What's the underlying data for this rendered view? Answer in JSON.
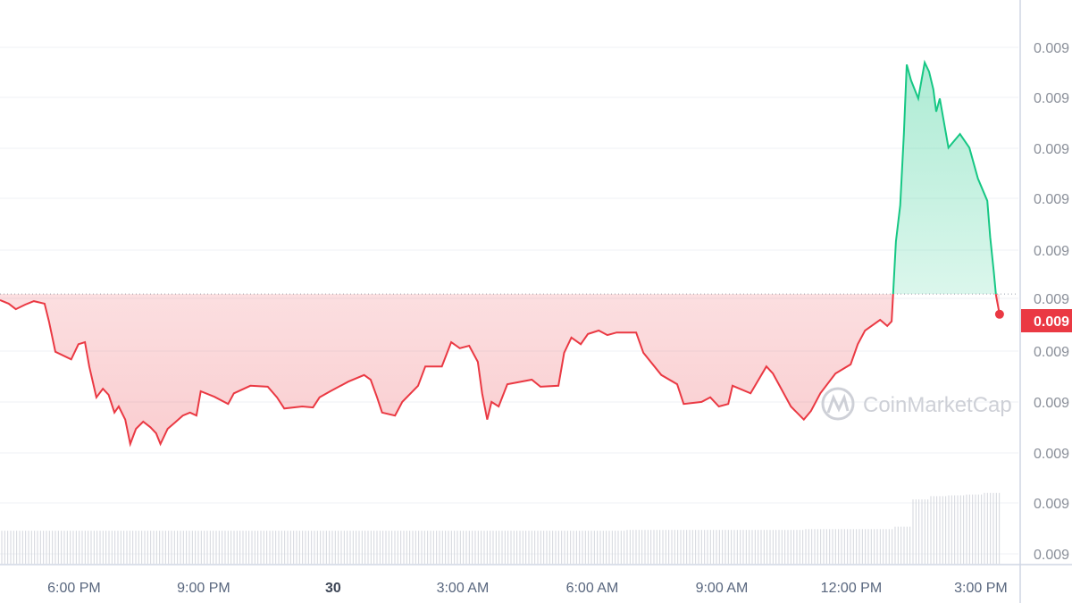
{
  "chart_data": {
    "type": "area",
    "title": "",
    "xlabel": "",
    "ylabel": "",
    "watermark": "CoinMarketCap",
    "x_tick_labels": [
      "6:00 PM",
      "9:00 PM",
      "30",
      "3:00 AM",
      "6:00 AM",
      "9:00 AM",
      "12:00 PM",
      "3:00 PM"
    ],
    "y_tick_labels": [
      "0.009",
      "0.009",
      "0.009",
      "0.009",
      "0.009",
      "0.009",
      "0.009",
      "0.009",
      "0.009",
      "0.009",
      "0.009"
    ],
    "y_scale_note": "relative price level (axis labels truncated)",
    "ylim": [
      0,
      100
    ],
    "grid": true,
    "reference_open": 51.3,
    "current_price_label": "0.009",
    "current_value": 47.3,
    "colors": {
      "up": "#16c784",
      "down": "#ea3943",
      "grid": "#eff2f5",
      "axis": "#cfd6e4",
      "volume": "#d3d6dc"
    },
    "series": [
      {
        "x": [
          "29 16:22",
          "29 16:34",
          "29 16:44",
          "29 16:57",
          "29 17:09",
          "29 17:24",
          "29 17:30",
          "29 17:39",
          "29 18:01",
          "29 18:11",
          "29 18:20",
          "29 18:26",
          "29 18:36",
          "29 18:45",
          "29 18:53",
          "29 19:01",
          "29 19:07",
          "29 19:16",
          "29 19:23",
          "29 19:31",
          "29 19:41",
          "29 19:51",
          "29 19:59",
          "29 20:05",
          "29 20:15",
          "29 20:25",
          "29 20:36",
          "29 20:46",
          "29 20:55",
          "29 21:01",
          "29 21:20",
          "29 21:39",
          "29 21:47",
          "29 22:10",
          "29 22:34",
          "29 22:47",
          "29 22:57",
          "29 23:22",
          "29 23:37",
          "29 23:46",
          "30 00:01",
          "30 00:26",
          "30 00:48",
          "30 00:57",
          "30 01:06",
          "30 01:13",
          "30 01:31",
          "30 01:41",
          "30 02:03",
          "30 02:13",
          "30 02:36",
          "30 02:49",
          "30 03:01",
          "30 03:14",
          "30 03:26",
          "30 03:32",
          "30 03:39",
          "30 03:45",
          "30 03:55",
          "30 04:07",
          "30 04:41",
          "30 04:53",
          "30 05:18",
          "30 05:26",
          "30 05:36",
          "30 05:49",
          "30 05:59",
          "30 06:14",
          "30 06:26",
          "30 06:39",
          "30 07:06",
          "30 07:16",
          "30 07:41",
          "30 08:03",
          "30 08:12",
          "30 08:37",
          "30 08:49",
          "30 09:01",
          "30 09:14",
          "30 09:20",
          "30 09:45",
          "30 10:07",
          "30 10:16",
          "30 10:41",
          "30 10:59",
          "30 11:09",
          "30 11:22",
          "30 11:43",
          "30 12:04",
          "30 12:14",
          "30 12:24",
          "30 12:45",
          "30 12:55",
          "30 13:01",
          "30 13:03",
          "30 13:07",
          "30 13:13",
          "30 13:18",
          "30 13:22",
          "30 13:28",
          "30 13:38",
          "30 13:47",
          "30 13:53",
          "30 13:59",
          "30 14:03",
          "30 14:08",
          "30 14:20",
          "30 14:36",
          "30 14:49",
          "30 15:01",
          "30 15:14",
          "30 15:18",
          "30 15:23",
          "30 15:26",
          "30 15:31"
        ],
        "values": [
          50.1,
          49.4,
          48.3,
          49.2,
          49.9,
          49.4,
          45.9,
          39.9,
          38.4,
          41.4,
          41.8,
          37.0,
          30.9,
          32.6,
          31.4,
          27.9,
          29.1,
          26.5,
          21.7,
          24.7,
          26.1,
          25.0,
          23.8,
          21.7,
          24.7,
          25.9,
          27.3,
          27.9,
          27.3,
          32.1,
          31.0,
          29.6,
          31.7,
          33.2,
          33.0,
          30.9,
          28.7,
          29.1,
          28.9,
          30.9,
          32.1,
          34.0,
          35.3,
          34.4,
          30.9,
          27.9,
          27.3,
          30.0,
          33.2,
          37.0,
          37.0,
          41.8,
          40.6,
          41.1,
          37.9,
          31.7,
          26.5,
          30.0,
          29.1,
          33.5,
          34.4,
          33.0,
          33.2,
          39.7,
          42.7,
          41.4,
          43.4,
          44.1,
          43.2,
          43.7,
          43.7,
          39.7,
          35.3,
          33.5,
          29.6,
          30.0,
          30.9,
          29.1,
          29.6,
          33.2,
          31.7,
          37.0,
          35.6,
          29.1,
          26.5,
          28.2,
          31.7,
          35.6,
          37.4,
          41.4,
          44.1,
          46.2,
          45.0,
          45.9,
          51.1,
          61.7,
          68.8,
          82.9,
          96.6,
          93.5,
          89.9,
          97.0,
          95.2,
          91.7,
          87.3,
          89.9,
          80.2,
          82.9,
          80.2,
          74.1,
          69.7,
          62.6,
          55.6,
          51.1,
          47.3
        ]
      }
    ],
    "volume": [
      41,
      41,
      41,
      41,
      41,
      41,
      41,
      41,
      41,
      41,
      41,
      41,
      41,
      41,
      41,
      41,
      41,
      41,
      41,
      41,
      41,
      41,
      41,
      41,
      41,
      41,
      41,
      41,
      41,
      41,
      41,
      41,
      41,
      41,
      41,
      42,
      42,
      42,
      42,
      42,
      42,
      42,
      42,
      42,
      42,
      43,
      43,
      43,
      43,
      43,
      46,
      80,
      84,
      85,
      86,
      88
    ]
  }
}
